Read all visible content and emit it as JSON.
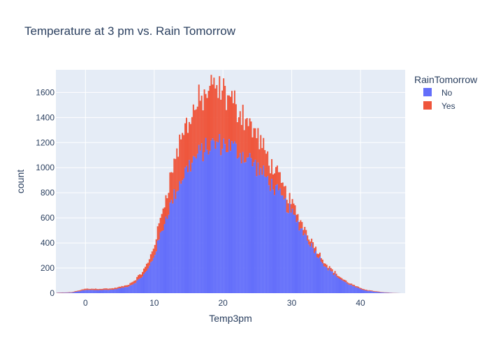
{
  "chart_data": {
    "type": "histogram",
    "barmode": "stacked",
    "title": "Temperature at 3 pm vs. Rain Tomorrow",
    "xlabel": "Temp3pm",
    "ylabel": "count",
    "xlim": [
      -4.3,
      46.5
    ],
    "ylim": [
      0,
      1780
    ],
    "bin_width": 0.2,
    "x_ticks": [
      0,
      10,
      20,
      30,
      40
    ],
    "y_ticks": [
      0,
      200,
      400,
      600,
      800,
      1000,
      1200,
      1400,
      1600
    ],
    "x_tick_labels": [
      "0",
      "10",
      "20",
      "30",
      "40"
    ],
    "y_tick_labels": [
      "0",
      "200",
      "400",
      "600",
      "800",
      "1000",
      "1200",
      "1400",
      "1600"
    ],
    "grid": true,
    "legend": {
      "title": "RainTomorrow",
      "placement": "top-right",
      "entries": [
        "No",
        "Yes"
      ]
    },
    "series": [
      {
        "name": "No",
        "color": "#636efa",
        "points": [
          [
            -4,
            2
          ],
          [
            -2,
            5
          ],
          [
            0,
            25
          ],
          [
            2,
            25
          ],
          [
            4,
            28
          ],
          [
            6,
            50
          ],
          [
            7,
            75
          ],
          [
            8,
            120
          ],
          [
            9,
            180
          ],
          [
            10,
            300
          ],
          [
            11,
            480
          ],
          [
            12,
            650
          ],
          [
            13,
            790
          ],
          [
            14,
            920
          ],
          [
            15,
            1010
          ],
          [
            16,
            1080
          ],
          [
            17,
            1130
          ],
          [
            18,
            1170
          ],
          [
            19,
            1190
          ],
          [
            20,
            1190
          ],
          [
            21,
            1170
          ],
          [
            22,
            1140
          ],
          [
            23,
            1100
          ],
          [
            24,
            1060
          ],
          [
            25,
            1000
          ],
          [
            26,
            940
          ],
          [
            27,
            870
          ],
          [
            28,
            800
          ],
          [
            29,
            720
          ],
          [
            30,
            640
          ],
          [
            31,
            550
          ],
          [
            32,
            460
          ],
          [
            33,
            370
          ],
          [
            34,
            285
          ],
          [
            35,
            210
          ],
          [
            36,
            160
          ],
          [
            37,
            115
          ],
          [
            38,
            80
          ],
          [
            39,
            55
          ],
          [
            40,
            32
          ],
          [
            41,
            20
          ],
          [
            42,
            12
          ],
          [
            43,
            6
          ],
          [
            44,
            3
          ],
          [
            45,
            1
          ],
          [
            46,
            0
          ]
        ]
      },
      {
        "name": "Yes",
        "color": "#ef553b",
        "points": [
          [
            -4,
            2
          ],
          [
            -2,
            3
          ],
          [
            0,
            10
          ],
          [
            2,
            10
          ],
          [
            4,
            10
          ],
          [
            6,
            12
          ],
          [
            7,
            20
          ],
          [
            8,
            30
          ],
          [
            9,
            50
          ],
          [
            10,
            80
          ],
          [
            11,
            130
          ],
          [
            12,
            200
          ],
          [
            13,
            270
          ],
          [
            14,
            330
          ],
          [
            15,
            370
          ],
          [
            16,
            400
          ],
          [
            17,
            420
          ],
          [
            18,
            440
          ],
          [
            19,
            430
          ],
          [
            20,
            410
          ],
          [
            21,
            380
          ],
          [
            22,
            350
          ],
          [
            23,
            320
          ],
          [
            24,
            280
          ],
          [
            25,
            250
          ],
          [
            26,
            200
          ],
          [
            27,
            160
          ],
          [
            28,
            130
          ],
          [
            29,
            100
          ],
          [
            30,
            80
          ],
          [
            31,
            60
          ],
          [
            32,
            50
          ],
          [
            33,
            40
          ],
          [
            34,
            30
          ],
          [
            35,
            25
          ],
          [
            36,
            20
          ],
          [
            37,
            15
          ],
          [
            38,
            12
          ],
          [
            39,
            10
          ],
          [
            40,
            8
          ],
          [
            41,
            6
          ],
          [
            42,
            5
          ],
          [
            43,
            3
          ],
          [
            44,
            2
          ],
          [
            45,
            1
          ],
          [
            46,
            0
          ]
        ]
      }
    ]
  }
}
